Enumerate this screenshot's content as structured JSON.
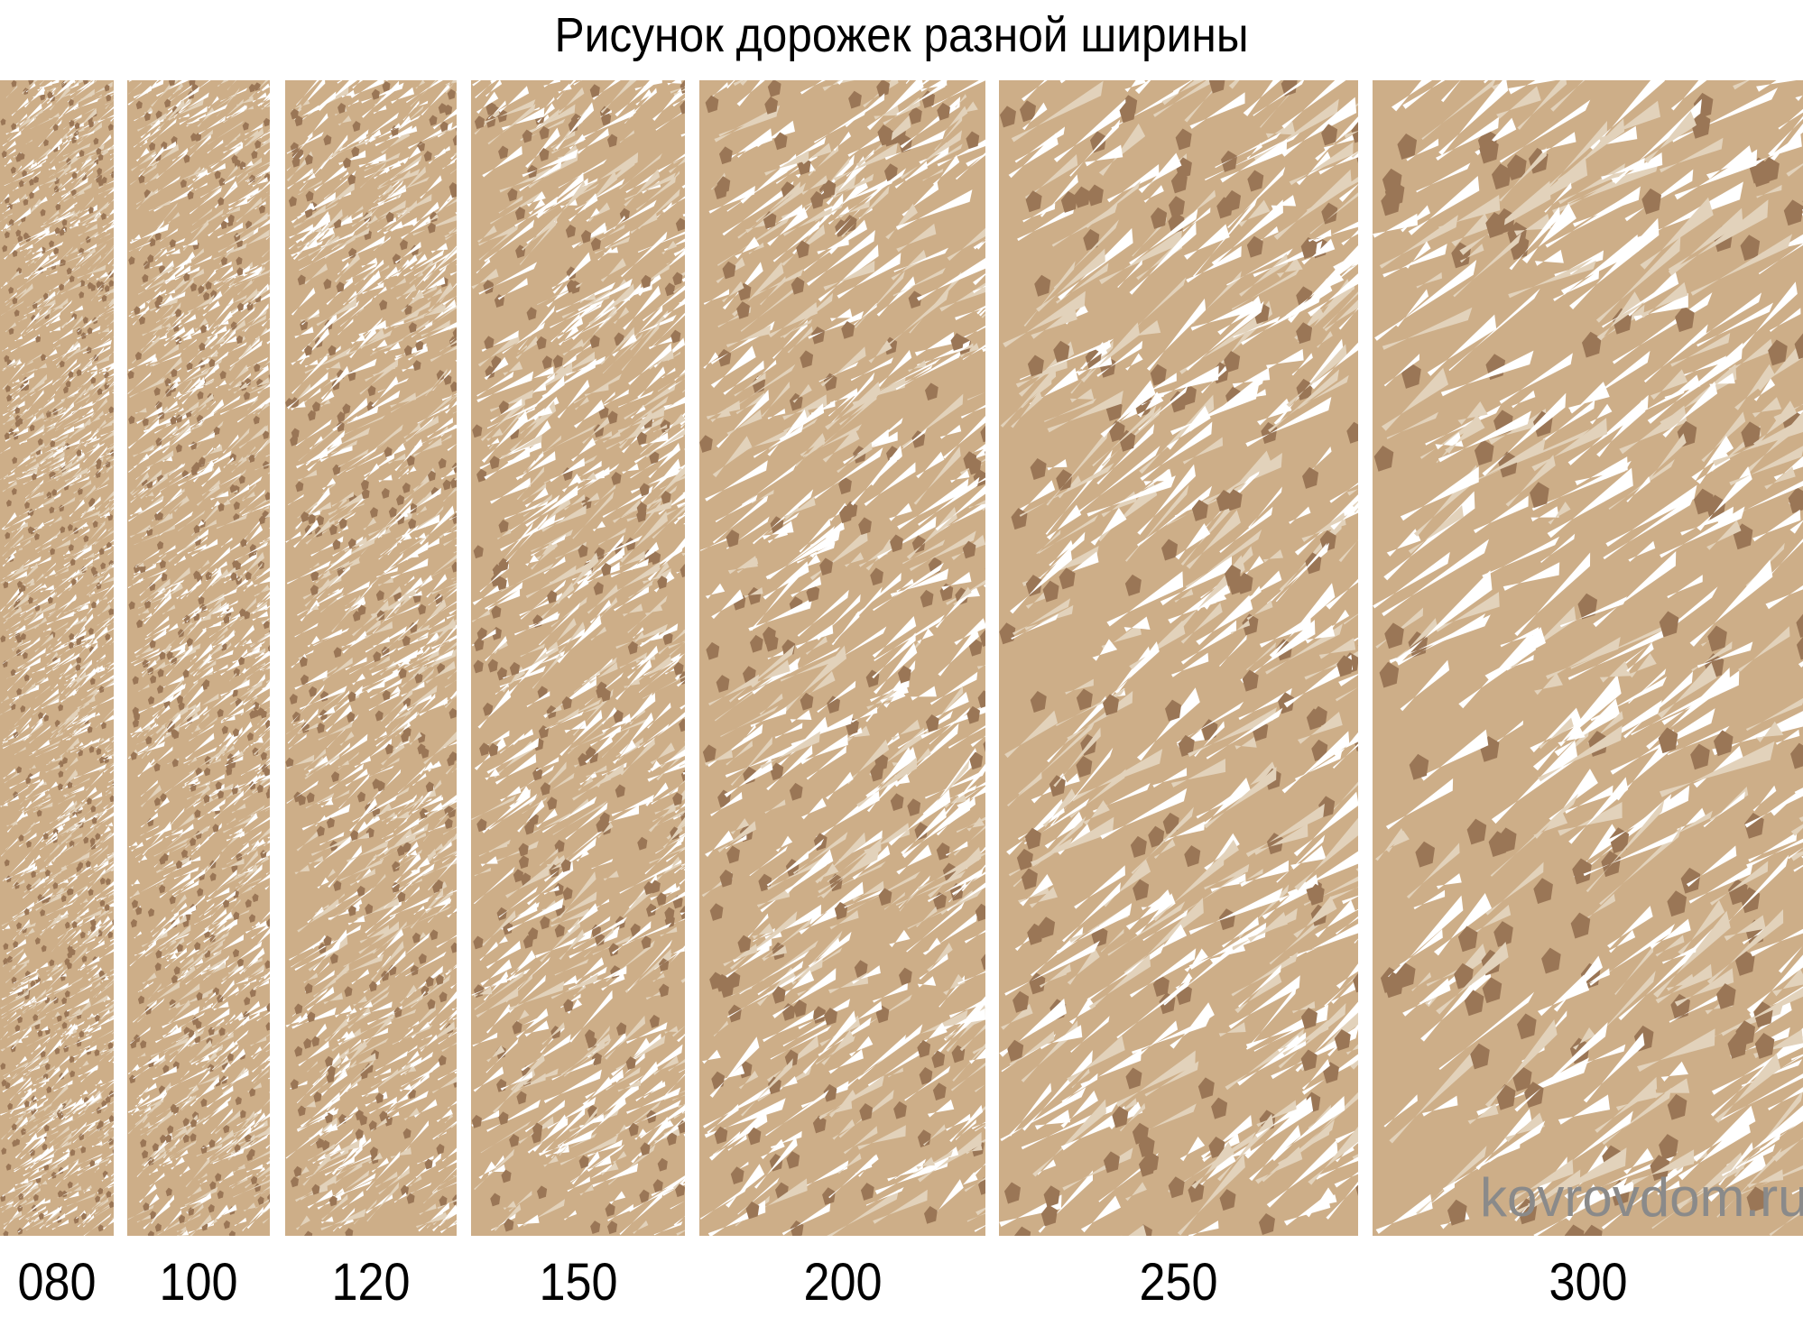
{
  "title": "Рисунок дорожек разной ширины",
  "colors": {
    "base": "#cdae88",
    "light": "#e2d2bb",
    "dark": "#9a7656",
    "white": "#ffffff"
  },
  "strips": [
    {
      "label": "080"
    },
    {
      "label": "100"
    },
    {
      "label": "120"
    },
    {
      "label": "150"
    },
    {
      "label": "200"
    },
    {
      "label": "250"
    },
    {
      "label": "300"
    }
  ],
  "watermark": "kovrovdom.ru"
}
